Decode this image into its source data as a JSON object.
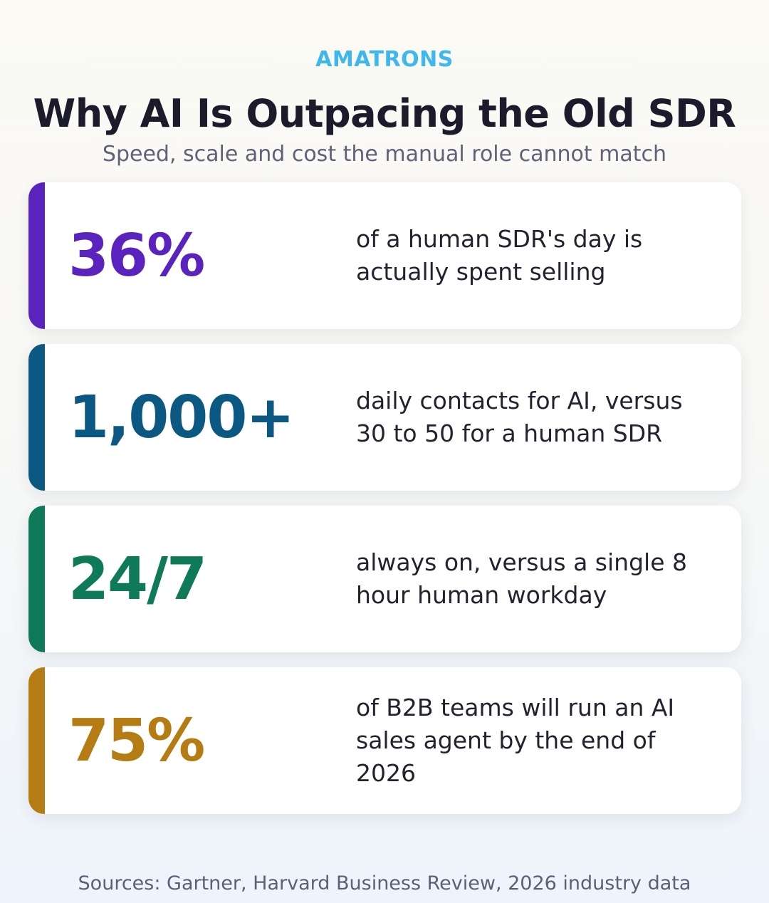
{
  "header": {
    "brand": "AMATRONS",
    "title": "Why AI Is Outpacing the Old SDR",
    "subtitle": "Speed, scale and cost the manual role cannot match"
  },
  "cards": [
    {
      "stat": "36%",
      "description": "of a human SDR's day is actually spent selling",
      "color": "#5b23bd"
    },
    {
      "stat": "1,000+",
      "description": "daily contacts for AI, versus 30 to 50 for a human SDR",
      "color": "#0b5882"
    },
    {
      "stat": "24/7",
      "description": "always on, versus a single 8 hour human workday",
      "color": "#0f7a58"
    },
    {
      "stat": "75%",
      "description": "of B2B teams will run an AI sales agent by the end of 2026",
      "color": "#b47c12"
    }
  ],
  "footer": {
    "sources": "Sources: Gartner, Harvard Business Review, 2026 industry data"
  }
}
